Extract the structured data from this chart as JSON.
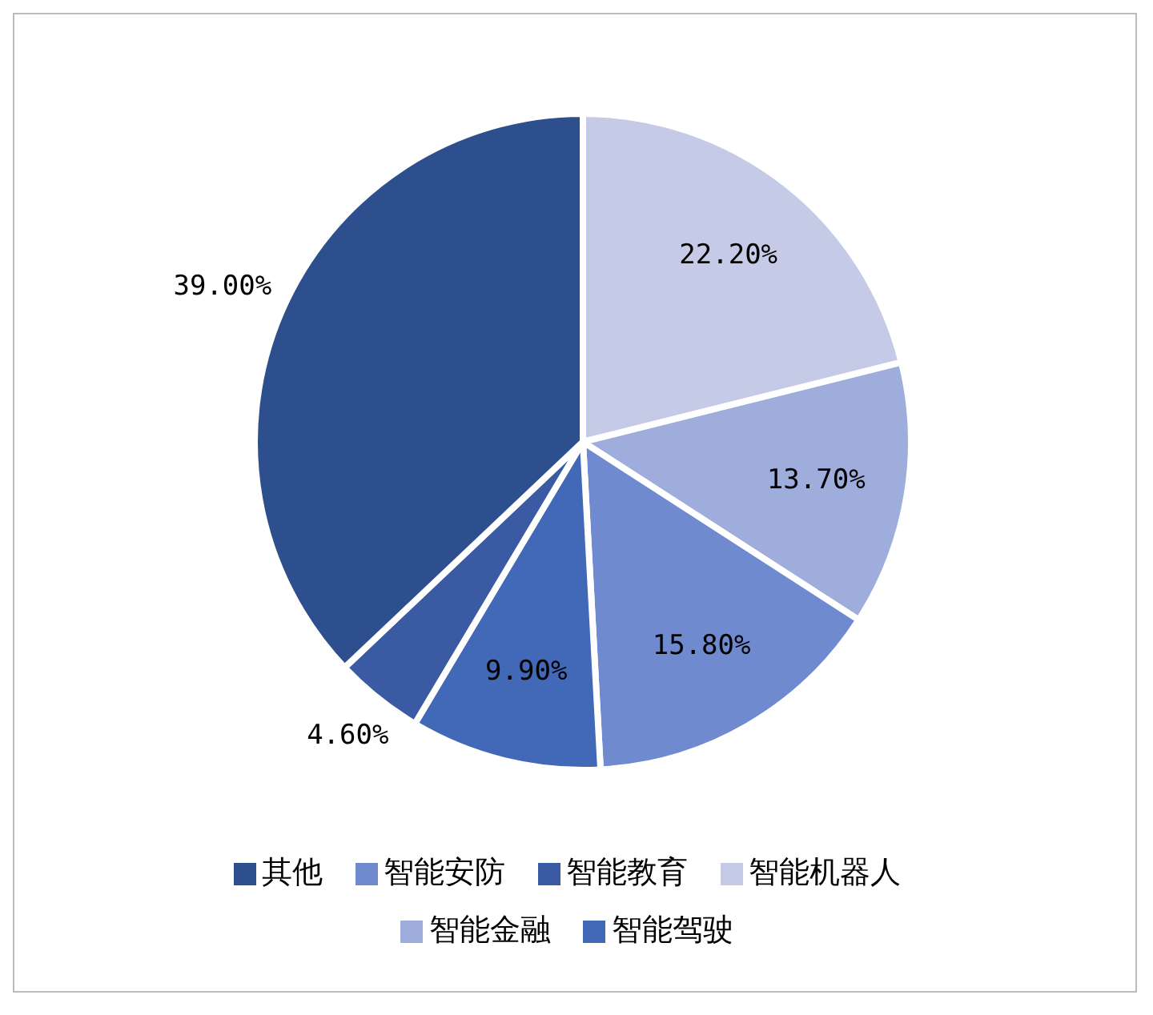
{
  "chart_data": {
    "type": "pie",
    "categories": [
      "智能机器人",
      "智能金融",
      "智能安防",
      "智能驾驶",
      "智能教育",
      "其他"
    ],
    "values": [
      22.2,
      13.7,
      15.8,
      9.9,
      4.6,
      39.0
    ],
    "value_labels": [
      "22.20%",
      "13.70%",
      "15.80%",
      "9.90%",
      "4.60%",
      "39.00%"
    ],
    "colors": [
      "#c5cae6",
      "#9eaddb",
      "#6f8ace",
      "#4268b8",
      "#3a5ba3",
      "#2e4f8e"
    ],
    "legend": "bottom"
  }
}
